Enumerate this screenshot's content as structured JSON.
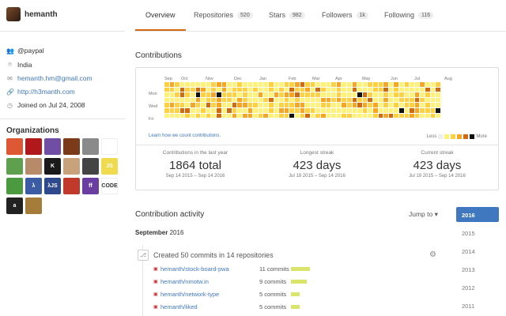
{
  "user": {
    "username": "hemanth"
  },
  "profile": {
    "organization": "@paypal",
    "location": "India",
    "email": "hemanth.hm@gmail.com",
    "website": "http://h3manth.com",
    "joined": "Joined on Jul 24, 2008"
  },
  "organizations": {
    "title": "Organizations",
    "items": [
      {
        "name": "duckduckgo",
        "label": "",
        "color": "#de5833"
      },
      {
        "name": "ruby",
        "label": "",
        "color": "#b0181c"
      },
      {
        "name": "hackerearth",
        "label": "",
        "color": "#6f4ea3"
      },
      {
        "name": "pirate",
        "label": "",
        "color": "#7b3b1a"
      },
      {
        "name": "cherry",
        "label": "",
        "color": "#8a8a8a"
      },
      {
        "name": "nodeschool",
        "label": "",
        "color": "#ffffff"
      },
      {
        "name": "nodejs",
        "label": "",
        "color": "#5fa04e"
      },
      {
        "name": "person",
        "label": "",
        "color": "#b78b6a"
      },
      {
        "name": "k-org",
        "label": "K",
        "color": "#1a1a1a"
      },
      {
        "name": "pug",
        "label": "",
        "color": "#c8a27a"
      },
      {
        "name": "gears",
        "label": "",
        "color": "#444444"
      },
      {
        "name": "js-shield",
        "label": "JS",
        "color": "#f0db4f"
      },
      {
        "name": "hexagon",
        "label": "",
        "color": "#4c9a3f"
      },
      {
        "name": "lambda",
        "label": "λ",
        "color": "#3b5ba5"
      },
      {
        "name": "lambda-js",
        "label": "λJS",
        "color": "#2e4a8c"
      },
      {
        "name": "orgbadge",
        "label": "",
        "color": "#c0392b"
      },
      {
        "name": "ff",
        "label": "ff",
        "color": "#6a3ea1"
      },
      {
        "name": "code",
        "label": "CODE",
        "color": "#ffffff"
      },
      {
        "name": "alpha",
        "label": "a",
        "color": "#222222"
      },
      {
        "name": "lion",
        "label": "",
        "color": "#a57c3a"
      }
    ]
  },
  "tabs": [
    {
      "label": "Overview",
      "count": ""
    },
    {
      "label": "Repositories",
      "count": "520"
    },
    {
      "label": "Stars",
      "count": "982"
    },
    {
      "label": "Followers",
      "count": "1k"
    },
    {
      "label": "Following",
      "count": "116"
    }
  ],
  "contributions": {
    "title": "Contributions",
    "months": [
      "Sep",
      "Oct",
      "Nov",
      "Dec",
      "Jan",
      "Feb",
      "Mar",
      "Apr",
      "May",
      "Jun",
      "Jul",
      "Aug"
    ],
    "days": [
      "Mon",
      "Wed",
      "Fri"
    ],
    "learn_link": "Learn how we count contributions.",
    "legend_less": "Less",
    "legend_more": "More",
    "colors": [
      "#eeeeee",
      "#fff27a",
      "#ffd040",
      "#f6a623",
      "#d06b12",
      "#111111"
    ],
    "stats": [
      {
        "label": "Contributions in the last year",
        "value": "1864 total",
        "range": "Sep 14 2015 – Sep 14 2016"
      },
      {
        "label": "Longest streak",
        "value": "423 days",
        "range": "Jul 19 2015 – Sep 14 2016"
      },
      {
        "label": "Current streak",
        "value": "423 days",
        "range": "Jul 19 2015 – Sep 14 2016"
      }
    ]
  },
  "activity": {
    "title": "Contribution activity",
    "jump_to": "Jump to ▾",
    "month_bold": "September",
    "month_year": "2016",
    "summary": "Created 50 commits in 14 repositories",
    "repos": [
      {
        "name": "hemanth/stock-board-pwa",
        "commits": "11 commits",
        "ratio": 1.0
      },
      {
        "name": "hemanth/nmotw.in",
        "commits": "9 commits",
        "ratio": 0.82
      },
      {
        "name": "hemanth/network-type",
        "commits": "5 commits",
        "ratio": 0.45
      },
      {
        "name": "hemanth/liked",
        "commits": "5 commits",
        "ratio": 0.45
      }
    ],
    "years": [
      "2016",
      "2015",
      "2014",
      "2013",
      "2012",
      "2011"
    ]
  }
}
